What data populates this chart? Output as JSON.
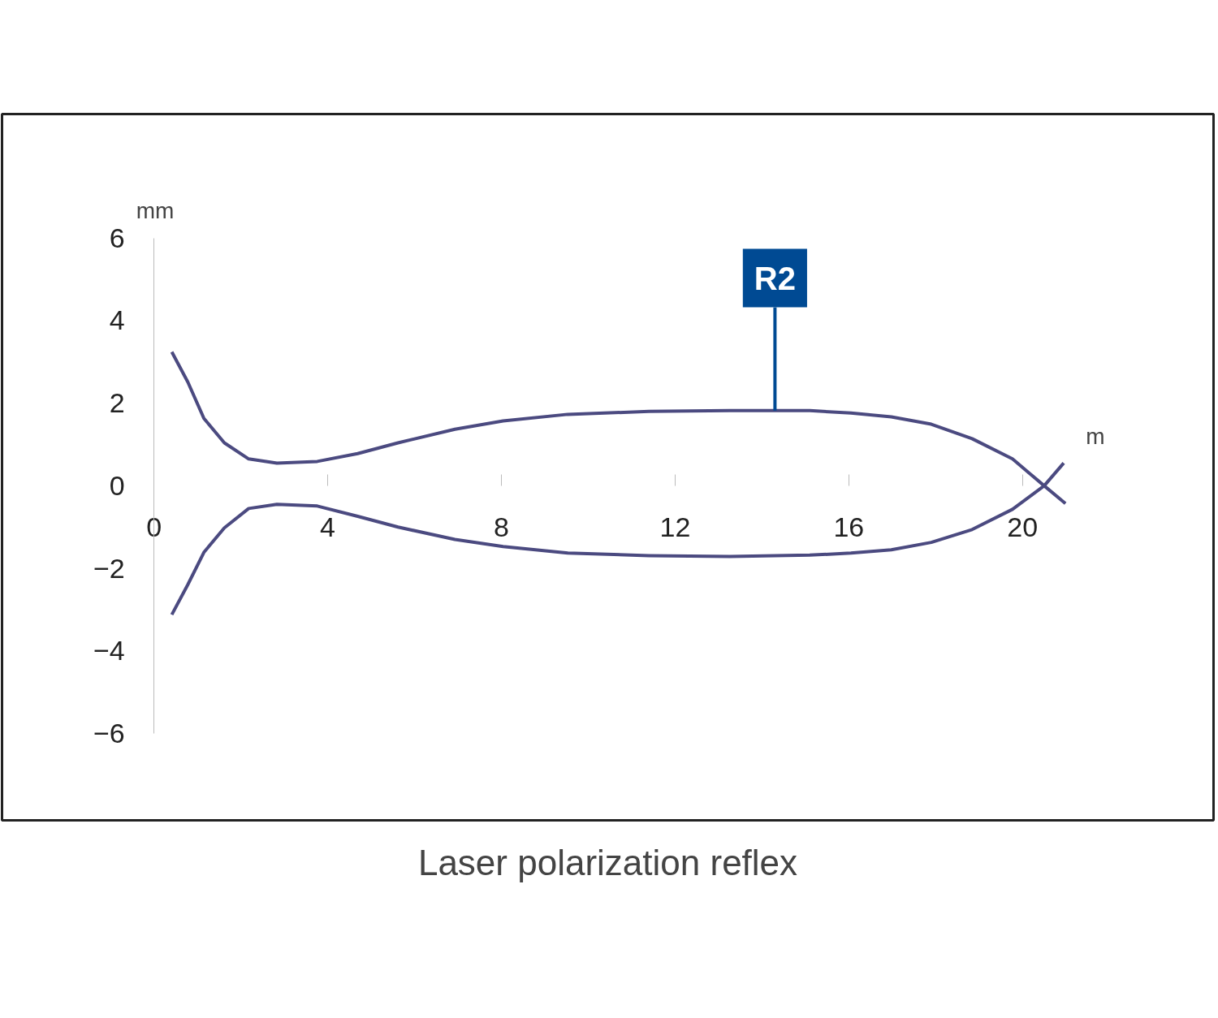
{
  "chart_data": {
    "type": "line",
    "title": "Laser polarization reflex",
    "xlabel": "m",
    "ylabel": "mm",
    "xlim": [
      -3.5,
      24.4
    ],
    "ylim": [
      -8.1,
      9
    ],
    "xticks": [
      0,
      4,
      8,
      12,
      16,
      20
    ],
    "yticks": [
      -6,
      -4,
      -2,
      0,
      2,
      4,
      6
    ],
    "grid": false,
    "annotations": [
      {
        "text": "R2",
        "x": 14.3,
        "y": 1.82
      }
    ],
    "series": [
      {
        "color": "#4b4a80",
        "x": [
          0.41,
          0.78,
          1.15,
          1.62,
          2.18,
          2.83,
          3.76,
          4.69,
          5.62,
          6.93,
          8.04,
          9.53,
          11.4,
          13.26,
          15.1,
          16.05,
          16.98,
          17.9,
          18.84,
          19.77,
          20.5,
          20.99
        ],
        "values": [
          3.24,
          2.51,
          1.63,
          1.04,
          0.65,
          0.55,
          0.59,
          0.78,
          1.04,
          1.37,
          1.57,
          1.73,
          1.8,
          1.82,
          1.82,
          1.76,
          1.67,
          1.49,
          1.14,
          0.65,
          0,
          -0.43
        ]
      },
      {
        "color": "#4b4a80",
        "x": [
          0.41,
          0.78,
          1.15,
          1.62,
          2.18,
          2.83,
          3.76,
          4.69,
          5.62,
          6.93,
          8.04,
          9.53,
          11.4,
          13.26,
          15.1,
          16.05,
          16.98,
          17.9,
          18.84,
          19.77,
          20.5,
          20.95
        ],
        "values": [
          -3.12,
          -2.39,
          -1.61,
          -1.02,
          -0.55,
          -0.45,
          -0.49,
          -0.74,
          -1.0,
          -1.3,
          -1.47,
          -1.63,
          -1.69,
          -1.71,
          -1.68,
          -1.63,
          -1.55,
          -1.37,
          -1.06,
          -0.57,
          0,
          0.55
        ]
      }
    ]
  }
}
